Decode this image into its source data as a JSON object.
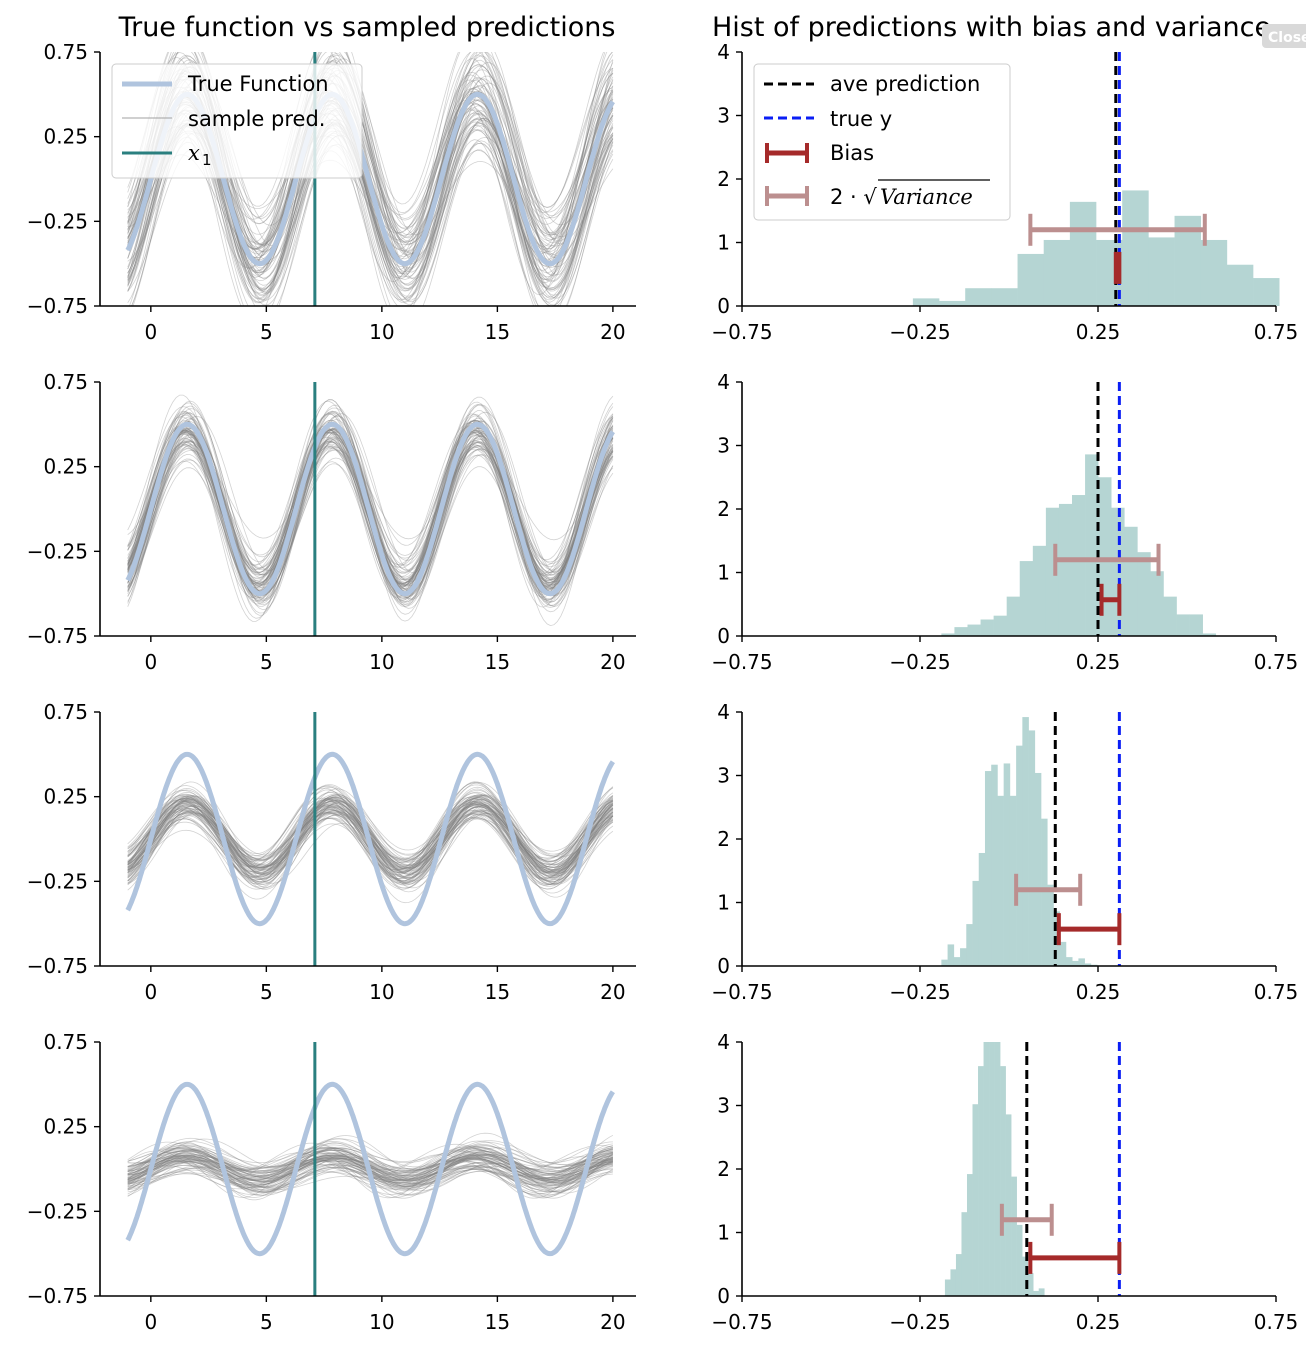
{
  "close_button": {
    "label": "Close"
  },
  "colors": {
    "true_fn": "#b0c4de",
    "sample": "#808080",
    "x1_line": "#2a7f7f",
    "hist": "#b5d5d3",
    "ave": "#000000",
    "true_y": "#0a1ef5",
    "bias": "#a52a2a",
    "variance": "#bc8f8f"
  },
  "chart_data": [
    {
      "id": "left",
      "type": "line",
      "title": "True function vs sampled predictions",
      "xlim": [
        -2.2,
        21
      ],
      "ylim": [
        -0.75,
        0.75
      ],
      "xticks": [
        0,
        5,
        10,
        15,
        20
      ],
      "xtick_labels": [
        "0",
        "5",
        "10",
        "15",
        "20"
      ],
      "yticks": [
        0.75,
        0.25,
        -0.25,
        -0.75
      ],
      "ytick_labels": [
        "0.75",
        "0.25",
        "−0.25",
        "−0.75"
      ],
      "x1": 7.1,
      "true_function": {
        "x_range": [
          -1,
          20
        ],
        "formula": "0.5*sin(x)"
      },
      "legend": [
        "True Function",
        "sample pred.",
        "x",
        "1"
      ],
      "rows": [
        {
          "sample_amp": 0.5,
          "noise": 0.22
        },
        {
          "sample_amp": 0.45,
          "noise": 0.1
        },
        {
          "sample_amp": 0.2,
          "noise": 0.07
        },
        {
          "sample_amp": 0.07,
          "noise": 0.07
        }
      ]
    },
    {
      "id": "right",
      "type": "bar",
      "title": "Hist of predictions with bias and variance",
      "xlim": [
        -0.75,
        0.75
      ],
      "ylim": [
        0,
        4
      ],
      "xticks": [
        -0.75,
        -0.25,
        0.25,
        0.75
      ],
      "xtick_labels": [
        "−0.75",
        "−0.25",
        "0.25",
        "0.75"
      ],
      "yticks": [
        0,
        1,
        2,
        3,
        4
      ],
      "ytick_labels": [
        "0",
        "1",
        "2",
        "3",
        "4"
      ],
      "true_y": 0.31,
      "legend": [
        "ave prediction",
        "true y",
        "Bias",
        "2 · √",
        "Variance"
      ],
      "rows": [
        {
          "bin_start": -0.27,
          "bin_width": 0.0735,
          "counts": [
            0.12,
            0.08,
            0.28,
            0.28,
            0.82,
            1.04,
            1.64,
            1.04,
            1.82,
            1.08,
            1.42,
            1.04,
            0.65,
            0.44
          ],
          "ave": 0.3,
          "bias": [
            0.3,
            0.31
          ],
          "bias_y": 0.6,
          "var": [
            0.06,
            0.55
          ],
          "var_y": 1.2
        },
        {
          "bin_start": -0.19,
          "bin_width": 0.0367,
          "counts": [
            0.04,
            0.14,
            0.18,
            0.26,
            0.32,
            0.62,
            1.18,
            1.42,
            2.02,
            2.08,
            2.22,
            2.86,
            2.5,
            2.02,
            1.72,
            1.32,
            1.02,
            0.62,
            0.34,
            0.34,
            0.04
          ],
          "ave": 0.25,
          "bias": [
            0.26,
            0.31
          ],
          "bias_y": 0.57,
          "var": [
            0.13,
            0.42
          ],
          "var_y": 1.2
        },
        {
          "bin_start": -0.19,
          "bin_width": 0.0175,
          "counts": [
            0.1,
            0.34,
            0.14,
            0.28,
            0.66,
            1.34,
            1.78,
            3.07,
            3.17,
            2.68,
            3.19,
            2.68,
            3.47,
            3.92,
            3.71,
            3.04,
            2.32,
            1.28,
            0.86,
            0.38,
            0.14,
            0.08,
            0.12,
            0.04,
            0.02
          ],
          "ave": 0.13,
          "bias": [
            0.14,
            0.31
          ],
          "bias_y": 0.58,
          "var": [
            0.02,
            0.2
          ],
          "var_y": 1.2
        },
        {
          "bin_start": -0.18,
          "bin_width": 0.0155,
          "counts": [
            0.26,
            0.42,
            0.66,
            1.32,
            1.92,
            3.02,
            3.62,
            4.02,
            4.02,
            4.02,
            3.62,
            2.86,
            1.88,
            1.12,
            0.62,
            0.36,
            0.08,
            0.12
          ],
          "ave": 0.05,
          "bias": [
            0.06,
            0.31
          ],
          "bias_y": 0.6,
          "var": [
            -0.02,
            0.12
          ],
          "var_y": 1.2
        }
      ]
    }
  ]
}
